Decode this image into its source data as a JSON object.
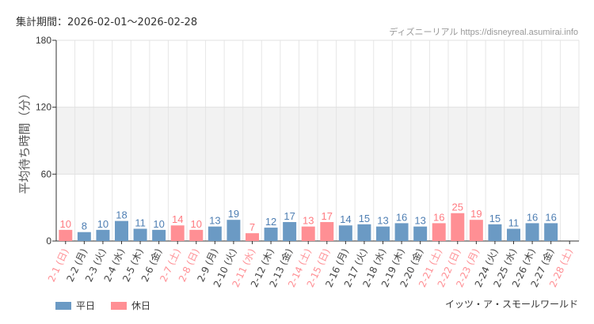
{
  "header": {
    "period": "集計期間：2026-02-01～2026-02-28",
    "credit": "ディズニーリアル https://disneyreal.asumirai.info",
    "park": "イッツ・ア・スモールワールド"
  },
  "legend": [
    {
      "label": "平日",
      "color": "#6b9ac4"
    },
    {
      "label": "休日",
      "color": "#ff8f94"
    }
  ],
  "chart_data": {
    "type": "bar",
    "title": "",
    "ylabel": "平均待ち時間（分）",
    "ylim": [
      0,
      180
    ],
    "yticks": [
      0,
      60,
      120,
      180
    ],
    "grid": true,
    "shaded_band": [
      60,
      120
    ],
    "legend_placement": "bottom-left",
    "categories": [
      "2-1 (日)",
      "2-2 (月)",
      "2-3 (火)",
      "2-4 (水)",
      "2-5 (木)",
      "2-6 (金)",
      "2-7 (土)",
      "2-8 (日)",
      "2-9 (月)",
      "2-10 (火)",
      "2-11 (水)",
      "2-12 (木)",
      "2-13 (金)",
      "2-14 (土)",
      "2-15 (日)",
      "2-16 (月)",
      "2-17 (火)",
      "2-18 (水)",
      "2-19 (木)",
      "2-20 (金)",
      "2-21 (土)",
      "2-22 (日)",
      "2-23 (月)",
      "2-24 (火)",
      "2-25 (水)",
      "2-26 (木)",
      "2-27 (金)",
      "2-28 (土)"
    ],
    "values": [
      10,
      8,
      10,
      18,
      11,
      10,
      14,
      10,
      13,
      19,
      7,
      12,
      17,
      13,
      17,
      14,
      15,
      13,
      16,
      13,
      16,
      25,
      19,
      15,
      11,
      16,
      16,
      null
    ],
    "holiday": [
      true,
      false,
      false,
      false,
      false,
      false,
      true,
      true,
      false,
      false,
      true,
      false,
      false,
      true,
      true,
      false,
      false,
      false,
      false,
      false,
      true,
      true,
      true,
      false,
      false,
      false,
      false,
      true
    ]
  }
}
